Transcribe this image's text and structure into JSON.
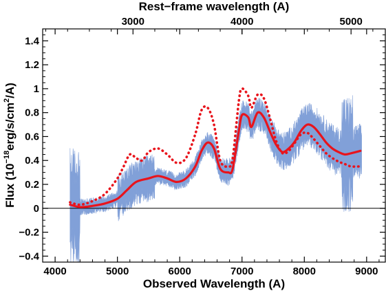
{
  "chart_data": {
    "type": "line",
    "xlabel": "Observed Wavelength (A)",
    "ylabel_parts": [
      "Flux (10",
      "−18",
      "erg/s/cm",
      "2",
      "/A)"
    ],
    "top_xlabel": "Rest−frame wavelength (A)",
    "xlim": [
      3800,
      9300
    ],
    "ylim": [
      -0.45,
      1.5
    ],
    "x_ticks": [
      "4000",
      "5000",
      "6000",
      "7000",
      "8000",
      "9000"
    ],
    "y_ticks": [
      "−0.4",
      "−0.2",
      "0",
      "0.2",
      "0.4",
      "0.6",
      "0.8",
      "1",
      "1.2",
      "1.4"
    ],
    "top_ticks": [
      "3000",
      "4000",
      "5000"
    ],
    "rest_frame_factor": 1.75,
    "zero_line": true,
    "colors": {
      "spectrum": "#7b9bd6",
      "model": "#e8141c",
      "axis": "#000000"
    },
    "series": [
      {
        "style": "solid",
        "x": [
          4240,
          4400,
          4600,
          4800,
          5000,
          5150,
          5300,
          5500,
          5650,
          5800,
          5950,
          6100,
          6250,
          6350,
          6450,
          6550,
          6650,
          6780,
          6850,
          6950,
          7000,
          7100,
          7150,
          7250,
          7350,
          7450,
          7550,
          7650,
          7750,
          7850,
          7950,
          8050,
          8150,
          8250,
          8350,
          8450,
          8550,
          8650,
          8750,
          8900
        ],
        "y": [
          0.03,
          0.01,
          0.02,
          0.04,
          0.08,
          0.15,
          0.22,
          0.25,
          0.27,
          0.25,
          0.22,
          0.25,
          0.35,
          0.48,
          0.55,
          0.5,
          0.33,
          0.3,
          0.33,
          0.65,
          0.78,
          0.76,
          0.68,
          0.8,
          0.76,
          0.64,
          0.53,
          0.47,
          0.5,
          0.56,
          0.65,
          0.7,
          0.68,
          0.62,
          0.55,
          0.5,
          0.47,
          0.45,
          0.46,
          0.48
        ]
      },
      {
        "style": "dotted",
        "x": [
          4240,
          4400,
          4600,
          4800,
          5000,
          5100,
          5200,
          5300,
          5400,
          5500,
          5650,
          5800,
          5950,
          6100,
          6250,
          6350,
          6450,
          6550,
          6650,
          6780,
          6850,
          6950,
          7000,
          7100,
          7150,
          7250,
          7350,
          7450,
          7550,
          7650,
          7750,
          7850,
          7950,
          8050,
          8150,
          8250,
          8350,
          8450,
          8550,
          8650,
          8750,
          8900
        ],
        "y": [
          0.05,
          0.03,
          0.06,
          0.12,
          0.25,
          0.35,
          0.45,
          0.42,
          0.4,
          0.47,
          0.5,
          0.45,
          0.38,
          0.42,
          0.62,
          0.82,
          0.84,
          0.7,
          0.4,
          0.35,
          0.42,
          0.9,
          1.0,
          0.94,
          0.84,
          0.95,
          0.92,
          0.75,
          0.56,
          0.46,
          0.48,
          0.55,
          0.62,
          0.63,
          0.58,
          0.52,
          0.46,
          0.42,
          0.39,
          0.37,
          0.35,
          0.35
        ]
      }
    ]
  }
}
